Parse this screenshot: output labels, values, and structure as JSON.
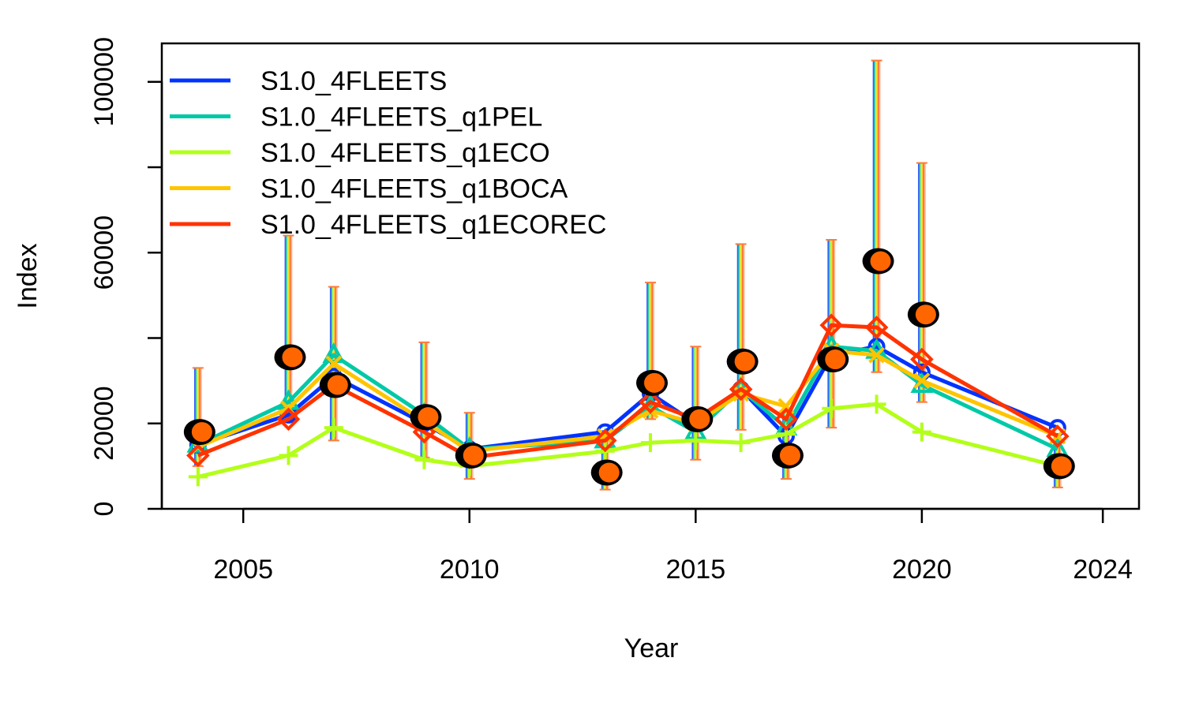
{
  "chart_data": {
    "type": "line",
    "title": "",
    "xlabel": "Year",
    "ylabel": "Index",
    "xlim": [
      2003.2,
      2024.8
    ],
    "ylim": [
      0,
      109000
    ],
    "x_ticks": [
      2005,
      2010,
      2015,
      2020,
      2024
    ],
    "x_tick_labels": [
      "2005",
      "2010",
      "2015",
      "2020",
      "2024"
    ],
    "y_ticks": [
      0,
      20000,
      40000,
      60000,
      80000,
      100000
    ],
    "y_tick_labels": [
      "0",
      "20000",
      "",
      "60000",
      "",
      "100000"
    ],
    "legend_position": "top-left",
    "grid": false,
    "x": [
      2004,
      2006,
      2007,
      2009,
      2010,
      2013,
      2014,
      2015,
      2016,
      2017,
      2018,
      2019,
      2020,
      2023
    ],
    "series": [
      {
        "name": "S1.0_4FLEETS",
        "color": "#0033ff",
        "marker": "circle",
        "values": [
          15000,
          22000,
          31000,
          20000,
          14000,
          18000,
          27000,
          20000,
          28000,
          17000,
          36000,
          38000,
          32000,
          19000
        ]
      },
      {
        "name": "S1.0_4FLEETS_q1PEL",
        "color": "#00c9a7",
        "marker": "triangle",
        "values": [
          15000,
          25000,
          36000,
          22000,
          14000,
          16000,
          24000,
          18000,
          28000,
          19000,
          38000,
          37000,
          29000,
          14000
        ]
      },
      {
        "name": "S1.0_4FLEETS_q1ECO",
        "color": "#b3ff19",
        "marker": "plus",
        "values": [
          7500,
          12500,
          19000,
          11500,
          10000,
          13500,
          15500,
          16000,
          15500,
          17500,
          23500,
          24500,
          18000,
          10000
        ]
      },
      {
        "name": "S1.0_4FLEETS_q1BOCA",
        "color": "#ffc400",
        "marker": "cross",
        "values": [
          14500,
          23500,
          34000,
          20500,
          13500,
          17000,
          23000,
          20000,
          27000,
          24000,
          37000,
          36000,
          30000,
          17000
        ]
      },
      {
        "name": "S1.0_4FLEETS_q1ECOREC",
        "color": "#ff3300",
        "marker": "diamond",
        "values": [
          12500,
          21000,
          29000,
          18000,
          12000,
          16000,
          25000,
          21000,
          28000,
          21000,
          43000,
          42500,
          35000,
          17000
        ]
      }
    ],
    "observed": {
      "x": [
        2004,
        2006,
        2007,
        2009,
        2010,
        2013,
        2014,
        2015,
        2016,
        2017,
        2018,
        2019,
        2020,
        2023
      ],
      "values": [
        18000,
        35500,
        29000,
        21500,
        12500,
        8500,
        29500,
        21000,
        34500,
        12500,
        35000,
        58000,
        45500,
        10000
      ],
      "lower": [
        10000,
        21000,
        16000,
        12000,
        7000,
        4500,
        21000,
        11500,
        18500,
        7000,
        19000,
        32000,
        25000,
        5000
      ],
      "upper": [
        33000,
        64000,
        52000,
        39000,
        22500,
        17000,
        53000,
        38000,
        62000,
        23000,
        63000,
        105000,
        81000,
        17500
      ],
      "fill_color": "#ff6600",
      "outline_color": "#000000"
    }
  }
}
